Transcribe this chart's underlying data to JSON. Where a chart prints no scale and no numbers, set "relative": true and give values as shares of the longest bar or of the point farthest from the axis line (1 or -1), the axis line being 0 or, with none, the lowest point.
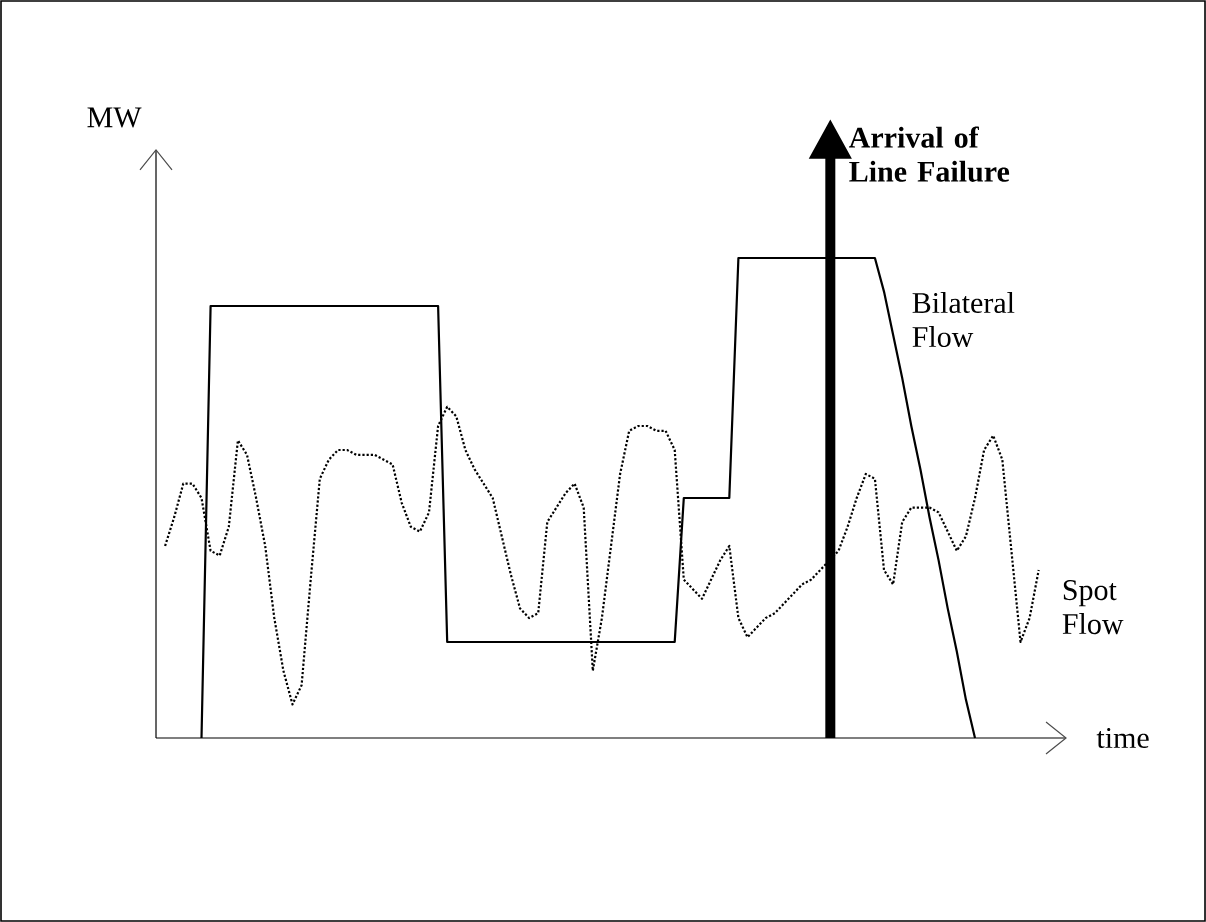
{
  "chart_data": {
    "type": "line",
    "xlabel": "time",
    "ylabel": "MW",
    "relative": true,
    "marker": "none",
    "categories": [
      null,
      null,
      null,
      null,
      null,
      null,
      null,
      null,
      null,
      null,
      null,
      null,
      null,
      null,
      null,
      null,
      null,
      null,
      null,
      null,
      null,
      null,
      null,
      null,
      null,
      null,
      null,
      null,
      null,
      null,
      null,
      null,
      null,
      null,
      null,
      null,
      null,
      null,
      null,
      null,
      null,
      null,
      null,
      null,
      null,
      null,
      null,
      null,
      null,
      null,
      null,
      null,
      null,
      null,
      null,
      null,
      null,
      null,
      null,
      null,
      null,
      null,
      null,
      null,
      null,
      null,
      null,
      null,
      null,
      null,
      null,
      null,
      null,
      null,
      null,
      null,
      null,
      null,
      null,
      null,
      null,
      null,
      null,
      null,
      null,
      null,
      null,
      null,
      null,
      null,
      null,
      null,
      null,
      null,
      null,
      null,
      null,
      null,
      null
    ],
    "series": [
      {
        "name": "Bilateral Flow",
        "color": "#000000",
        "line_style": "solid",
        "values": [
          null,
          null,
          null,
          null,
          null,
          0,
          0.9,
          0.9,
          0.9,
          0.9,
          0.9,
          0.9,
          0.9,
          0.9,
          0.9,
          0.9,
          0.9,
          0.9,
          0.9,
          0.9,
          0.9,
          0.9,
          0.9,
          0.9,
          0.9,
          0.9,
          0.9,
          0.9,
          0.9,
          0.9,
          0.9,
          0.9,
          0.2,
          0.2,
          0.2,
          0.2,
          0.2,
          0.2,
          0.2,
          0.2,
          0.2,
          0.2,
          0.2,
          0.2,
          0.2,
          0.2,
          0.2,
          0.2,
          0.2,
          0.2,
          0.2,
          0.2,
          0.2,
          0.2,
          0.2,
          0.2,
          0.2,
          0.2,
          0.5,
          0.5,
          0.5,
          0.5,
          0.5,
          0.5,
          1,
          1,
          1,
          1,
          1,
          1,
          1,
          1,
          1,
          1,
          1,
          1,
          1,
          1,
          1,
          1,
          0.93,
          0.84,
          0.75,
          0.65,
          0.56,
          0.46,
          0.37,
          0.27,
          0.18,
          0.08,
          0,
          null,
          null,
          null,
          null,
          null,
          null,
          null,
          null
        ]
      },
      {
        "name": "Spot Flow",
        "color": "#000000",
        "line_style": "dotted",
        "values": [
          null,
          0.4,
          0.46,
          0.53,
          0.53,
          0.5,
          0.39,
          0.38,
          0.44,
          0.62,
          0.59,
          0.5,
          0.4,
          0.25,
          0.14,
          0.07,
          0.11,
          0.33,
          0.54,
          0.58,
          0.6,
          0.6,
          0.59,
          0.59,
          0.59,
          0.58,
          0.57,
          0.49,
          0.44,
          0.43,
          0.47,
          0.65,
          0.69,
          0.67,
          0.6,
          0.56,
          0.53,
          0.5,
          0.42,
          0.34,
          0.27,
          0.25,
          0.26,
          0.45,
          0.48,
          0.51,
          0.53,
          0.48,
          0.14,
          0.25,
          0.4,
          0.55,
          0.64,
          0.65,
          0.65,
          0.64,
          0.64,
          0.6,
          0.33,
          0.31,
          0.29,
          0.33,
          0.37,
          0.4,
          0.25,
          0.21,
          0.23,
          0.25,
          0.26,
          0.28,
          0.3,
          0.32,
          0.33,
          0.35,
          0.37,
          0.39,
          0.44,
          0.5,
          0.55,
          0.54,
          0.35,
          0.32,
          0.45,
          0.48,
          0.48,
          0.48,
          0.47,
          0.43,
          0.39,
          0.42,
          0.5,
          0.6,
          0.63,
          0.58,
          0.39,
          0.2,
          0.25,
          0.35,
          null
        ]
      }
    ],
    "annotations": [
      "Arrival of Line Failure"
    ]
  }
}
